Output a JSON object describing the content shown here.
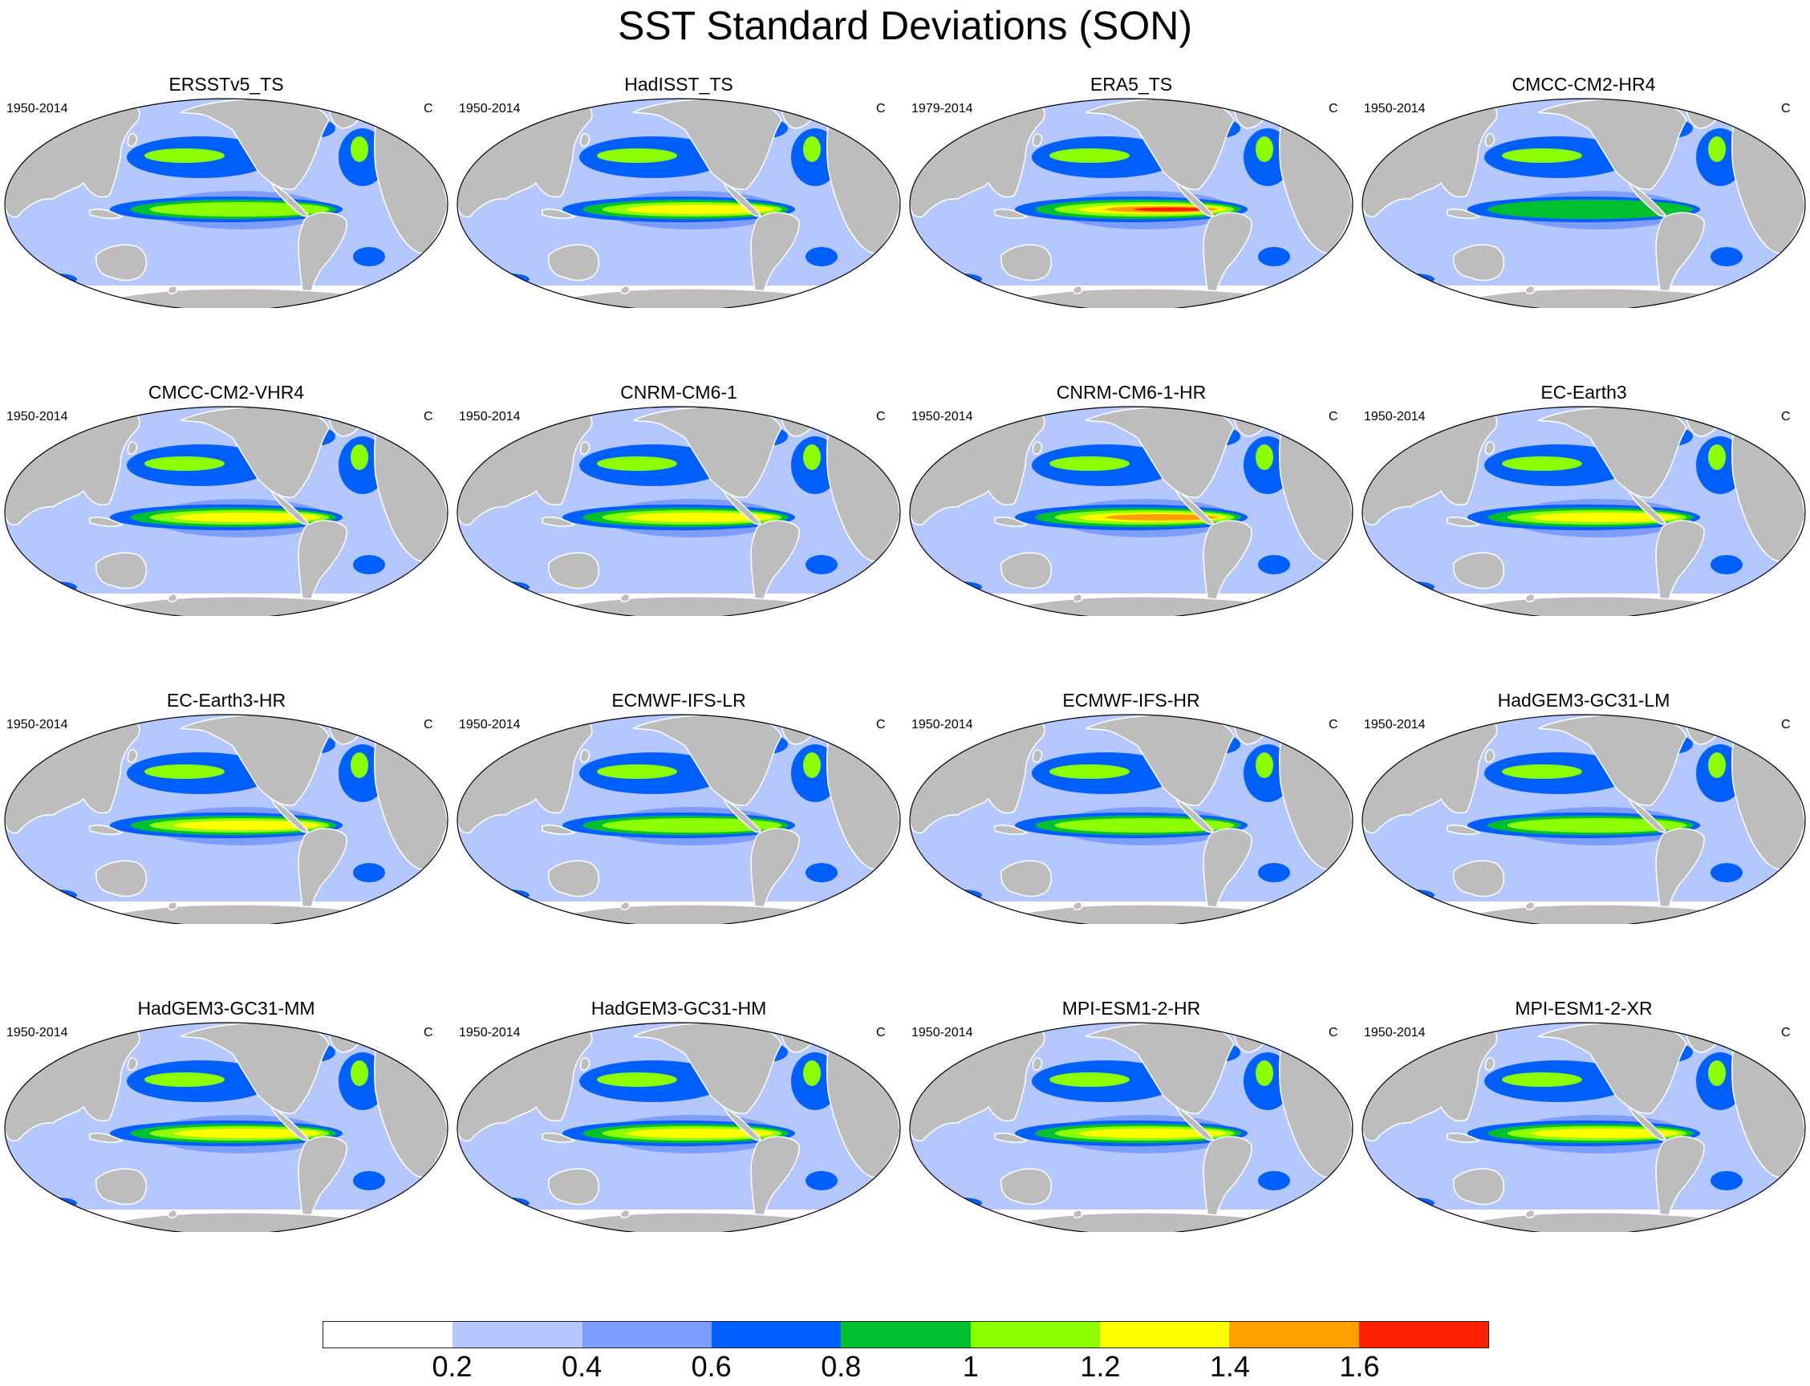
{
  "page": {
    "title": "SST Standard Deviations (SON)"
  },
  "map_style": {
    "projection": "Robinson-like (Pacific-centred)",
    "land_color": "#bdbdbd",
    "coast_color": "#ffffff",
    "outline_color": "#000000"
  },
  "panels": [
    {
      "title": "ERSSTv5_TS",
      "period": "1950-2014",
      "unit": "C",
      "enso_peak": 1.1,
      "background": 0.3
    },
    {
      "title": "HadISST_TS",
      "period": "1950-2014",
      "unit": "C",
      "enso_peak": 1.3,
      "background": 0.3
    },
    {
      "title": "ERA5_TS",
      "period": "1979-2014",
      "unit": "C",
      "enso_peak": 1.7,
      "background": 0.3
    },
    {
      "title": "CMCC-CM2-HR4",
      "period": "1950-2014",
      "unit": "C",
      "enso_peak": 1.0,
      "background": 0.3
    },
    {
      "title": "CMCC-CM2-VHR4",
      "period": "1950-2014",
      "unit": "C",
      "enso_peak": 1.3,
      "background": 0.3
    },
    {
      "title": "CNRM-CM6-1",
      "period": "1950-2014",
      "unit": "C",
      "enso_peak": 1.3,
      "background": 0.3
    },
    {
      "title": "CNRM-CM6-1-HR",
      "period": "1950-2014",
      "unit": "C",
      "enso_peak": 1.5,
      "background": 0.3
    },
    {
      "title": "EC-Earth3",
      "period": "1950-2014",
      "unit": "C",
      "enso_peak": 1.3,
      "background": 0.3
    },
    {
      "title": "EC-Earth3-HR",
      "period": "1950-2014",
      "unit": "C",
      "enso_peak": 1.3,
      "background": 0.3
    },
    {
      "title": "ECMWF-IFS-LR",
      "period": "1950-2014",
      "unit": "C",
      "enso_peak": 1.1,
      "background": 0.3
    },
    {
      "title": "ECMWF-IFS-HR",
      "period": "1950-2014",
      "unit": "C",
      "enso_peak": 1.1,
      "background": 0.3
    },
    {
      "title": "HadGEM3-GC31-LM",
      "period": "1950-2014",
      "unit": "C",
      "enso_peak": 1.1,
      "background": 0.3
    },
    {
      "title": "HadGEM3-GC31-MM",
      "period": "1950-2014",
      "unit": "C",
      "enso_peak": 1.3,
      "background": 0.3
    },
    {
      "title": "HadGEM3-GC31-HM",
      "period": "1950-2014",
      "unit": "C",
      "enso_peak": 1.3,
      "background": 0.3
    },
    {
      "title": "MPI-ESM1-2-HR",
      "period": "1950-2014",
      "unit": "C",
      "enso_peak": 1.3,
      "background": 0.3
    },
    {
      "title": "MPI-ESM1-2-XR",
      "period": "1950-2014",
      "unit": "C",
      "enso_peak": 1.3,
      "background": 0.3
    }
  ],
  "colorbar": {
    "colors": [
      "#ffffff",
      "#b4c8ff",
      "#7f9cff",
      "#0060ff",
      "#00c030",
      "#8cff00",
      "#ffff00",
      "#ffa000",
      "#ff2000"
    ],
    "labels": [
      "0.2",
      "0.4",
      "0.6",
      "0.8",
      "1",
      "1.2",
      "1.4",
      "1.6"
    ],
    "levels": [
      0.2,
      0.4,
      0.6,
      0.8,
      1.0,
      1.2,
      1.4,
      1.6
    ]
  }
}
